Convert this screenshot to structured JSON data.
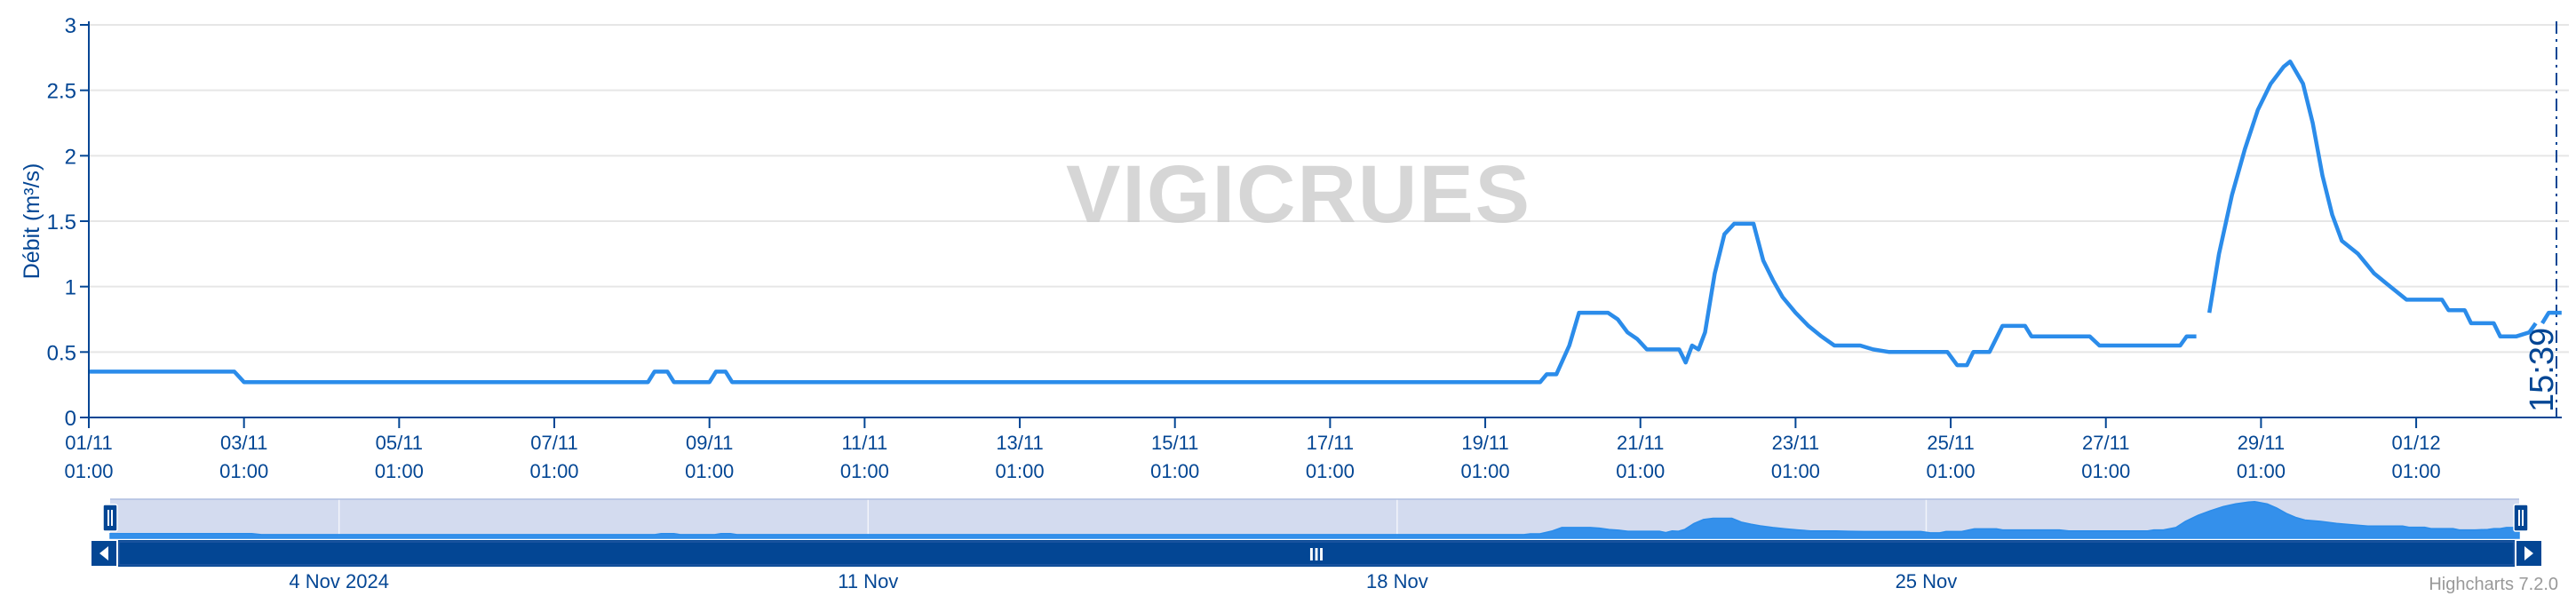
{
  "chart_data": {
    "type": "line",
    "ylabel": "Débit (m³/s)",
    "ylim": [
      0,
      3
    ],
    "y_ticks": [
      "0",
      "0.5",
      "1",
      "1.5",
      "2",
      "2.5",
      "3"
    ],
    "x_tick_labels": [
      {
        "date": "01/11",
        "time": "01:00"
      },
      {
        "date": "03/11",
        "time": "01:00"
      },
      {
        "date": "05/11",
        "time": "01:00"
      },
      {
        "date": "07/11",
        "time": "01:00"
      },
      {
        "date": "09/11",
        "time": "01:00"
      },
      {
        "date": "11/11",
        "time": "01:00"
      },
      {
        "date": "13/11",
        "time": "01:00"
      },
      {
        "date": "15/11",
        "time": "01:00"
      },
      {
        "date": "17/11",
        "time": "01:00"
      },
      {
        "date": "19/11",
        "time": "01:00"
      },
      {
        "date": "21/11",
        "time": "01:00"
      },
      {
        "date": "23/11",
        "time": "01:00"
      },
      {
        "date": "25/11",
        "time": "01:00"
      },
      {
        "date": "27/11",
        "time": "01:00"
      },
      {
        "date": "29/11",
        "time": "01:00"
      },
      {
        "date": "01/12",
        "time": "01:00"
      }
    ],
    "xlim": [
      "2024-11-01 01:00",
      "2024-12-02 16:00"
    ],
    "current_time_label": "15:39",
    "grid": true,
    "line_color": "#2b8cea",
    "series": [
      {
        "segments": [
          [
            [
              "2024-11-01 01:00",
              0.35
            ],
            [
              "2024-11-02 22:00",
              0.35
            ],
            [
              "2024-11-03 01:00",
              0.27
            ],
            [
              "2024-11-08 06:00",
              0.27
            ],
            [
              "2024-11-08 08:00",
              0.35
            ],
            [
              "2024-11-08 12:00",
              0.35
            ],
            [
              "2024-11-08 14:00",
              0.27
            ],
            [
              "2024-11-09 01:00",
              0.27
            ],
            [
              "2024-11-09 03:00",
              0.35
            ],
            [
              "2024-11-09 06:00",
              0.35
            ],
            [
              "2024-11-09 08:00",
              0.27
            ],
            [
              "2024-11-19 18:00",
              0.27
            ],
            [
              "2024-11-19 20:00",
              0.33
            ],
            [
              "2024-11-19 23:00",
              0.33
            ],
            [
              "2024-11-20 03:00",
              0.55
            ],
            [
              "2024-11-20 06:00",
              0.8
            ],
            [
              "2024-11-20 09:00",
              0.8
            ],
            [
              "2024-11-20 15:00",
              0.8
            ],
            [
              "2024-11-20 18:00",
              0.75
            ],
            [
              "2024-11-20 21:00",
              0.65
            ],
            [
              "2024-11-21 00:00",
              0.6
            ],
            [
              "2024-11-21 03:00",
              0.52
            ],
            [
              "2024-11-21 09:00",
              0.52
            ],
            [
              "2024-11-21 13:00",
              0.52
            ],
            [
              "2024-11-21 15:00",
              0.42
            ],
            [
              "2024-11-21 17:00",
              0.55
            ],
            [
              "2024-11-21 19:00",
              0.52
            ],
            [
              "2024-11-21 21:00",
              0.65
            ],
            [
              "2024-11-22 00:00",
              1.1
            ],
            [
              "2024-11-22 03:00",
              1.4
            ],
            [
              "2024-11-22 06:00",
              1.48
            ],
            [
              "2024-11-22 12:00",
              1.48
            ],
            [
              "2024-11-22 15:00",
              1.2
            ],
            [
              "2024-11-22 18:00",
              1.05
            ],
            [
              "2024-11-22 21:00",
              0.92
            ],
            [
              "2024-11-23 01:00",
              0.8
            ],
            [
              "2024-11-23 05:00",
              0.7
            ],
            [
              "2024-11-23 09:00",
              0.62
            ],
            [
              "2024-11-23 13:00",
              0.55
            ],
            [
              "2024-11-23 21:00",
              0.55
            ],
            [
              "2024-11-24 01:00",
              0.52
            ],
            [
              "2024-11-24 06:00",
              0.5
            ],
            [
              "2024-11-25 00:00",
              0.5
            ],
            [
              "2024-11-25 03:00",
              0.4
            ],
            [
              "2024-11-25 06:00",
              0.4
            ],
            [
              "2024-11-25 08:00",
              0.5
            ],
            [
              "2024-11-25 13:00",
              0.5
            ],
            [
              "2024-11-25 17:00",
              0.7
            ],
            [
              "2024-11-26 00:00",
              0.7
            ],
            [
              "2024-11-26 02:00",
              0.62
            ],
            [
              "2024-11-26 20:00",
              0.62
            ],
            [
              "2024-11-26 23:00",
              0.55
            ],
            [
              "2024-11-28 00:00",
              0.55
            ],
            [
              "2024-11-28 02:00",
              0.62
            ],
            [
              "2024-11-28 05:00",
              0.62
            ]
          ],
          [
            [
              "2024-11-28 09:00",
              0.8
            ],
            [
              "2024-11-28 12:00",
              1.25
            ],
            [
              "2024-11-28 16:00",
              1.7
            ],
            [
              "2024-11-28 20:00",
              2.05
            ],
            [
              "2024-11-29 00:00",
              2.35
            ],
            [
              "2024-11-29 04:00",
              2.55
            ],
            [
              "2024-11-29 08:00",
              2.68
            ],
            [
              "2024-11-29 10:00",
              2.72
            ],
            [
              "2024-11-29 14:00",
              2.55
            ],
            [
              "2024-11-29 17:00",
              2.25
            ],
            [
              "2024-11-29 20:00",
              1.85
            ],
            [
              "2024-11-29 23:00",
              1.55
            ],
            [
              "2024-11-30 02:00",
              1.35
            ],
            [
              "2024-11-30 07:00",
              1.25
            ],
            [
              "2024-11-30 12:00",
              1.1
            ],
            [
              "2024-11-30 16:00",
              1.02
            ],
            [
              "2024-11-30 22:00",
              0.9
            ],
            [
              "2024-12-01 09:00",
              0.9
            ],
            [
              "2024-12-01 11:00",
              0.82
            ],
            [
              "2024-12-01 16:00",
              0.82
            ],
            [
              "2024-12-01 18:00",
              0.72
            ],
            [
              "2024-12-02 01:00",
              0.72
            ],
            [
              "2024-12-02 03:00",
              0.62
            ],
            [
              "2024-12-02 08:00",
              0.62
            ],
            [
              "2024-12-02 12:00",
              0.65
            ],
            [
              "2024-12-02 14:00",
              0.72
            ]
          ],
          [
            [
              "2024-12-02 16:00",
              0.72
            ],
            [
              "2024-12-02 18:00",
              0.8
            ],
            [
              "2024-12-02 22:00",
              0.8
            ]
          ]
        ]
      }
    ]
  },
  "navigator": {
    "range_start_date": "2024-11-01 01:00",
    "range_end_date": "2024-12-02 22:00",
    "date_labels": [
      {
        "date": "2024-11-04 00:00",
        "label": "4 Nov 2024"
      },
      {
        "date": "2024-11-11 00:00",
        "label": "11 Nov"
      },
      {
        "date": "2024-11-18 00:00",
        "label": "18 Nov"
      },
      {
        "date": "2024-11-25 00:00",
        "label": "25 Nov"
      }
    ],
    "scrollbar_grip": "III",
    "fill_color": "#2b8cea",
    "mask_color": "#d3dbef",
    "scrollbar_color": "#034694"
  },
  "watermark": "VIGICRUES",
  "credits": "Highcharts 7.2.0"
}
